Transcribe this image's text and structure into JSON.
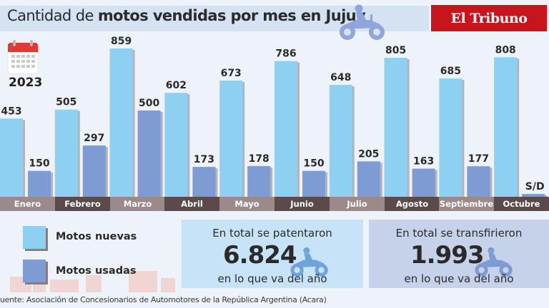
{
  "header": {
    "title_light": "Cantidad de ",
    "title_bold": "motos vendidas por mes en Jujuy",
    "logo": "El Tribuno",
    "year": "2023"
  },
  "colors": {
    "new": "#8dd0f2",
    "used": "#7e9bd3",
    "band_light": "#9c8a8a",
    "band_dark": "#5a4a4a",
    "logo_bg": "#c8141c"
  },
  "chart_data": {
    "type": "bar",
    "title": "Cantidad de motos vendidas por mes en Jujuy",
    "categories": [
      "Enero",
      "Febrero",
      "Marzo",
      "Abril",
      "Mayo",
      "Junio",
      "Julio",
      "Agosto",
      "Septiembre",
      "Octubre"
    ],
    "series": [
      {
        "name": "Motos nuevas",
        "values": [
          453,
          505,
          859,
          602,
          673,
          786,
          648,
          805,
          685,
          808
        ],
        "labels": [
          "453",
          "505",
          "859",
          "602",
          "673",
          "786",
          "648",
          "805",
          "685",
          "808"
        ]
      },
      {
        "name": "Motos usadas",
        "values": [
          150,
          297,
          500,
          173,
          178,
          150,
          205,
          163,
          177,
          null
        ],
        "labels": [
          "150",
          "297",
          "500",
          "173",
          "178",
          "150",
          "205",
          "163",
          "177",
          "S/D"
        ]
      }
    ],
    "ylim": [
      0,
      859
    ],
    "grid": false,
    "legend": "bottom-left"
  },
  "legend": {
    "new_label": "Motos nuevas",
    "used_label": "Motos usadas"
  },
  "stats": {
    "patentados": {
      "line1": "En total se patentaron",
      "value": "6.824",
      "line3": "en lo que va del año"
    },
    "transferidos": {
      "line1": "En total se transfirieron",
      "value": "1.993",
      "line3": "en lo que va del año"
    }
  },
  "source": "uente: Asociación de Concesionarios de Automotores de la República Argentina (Acara)"
}
